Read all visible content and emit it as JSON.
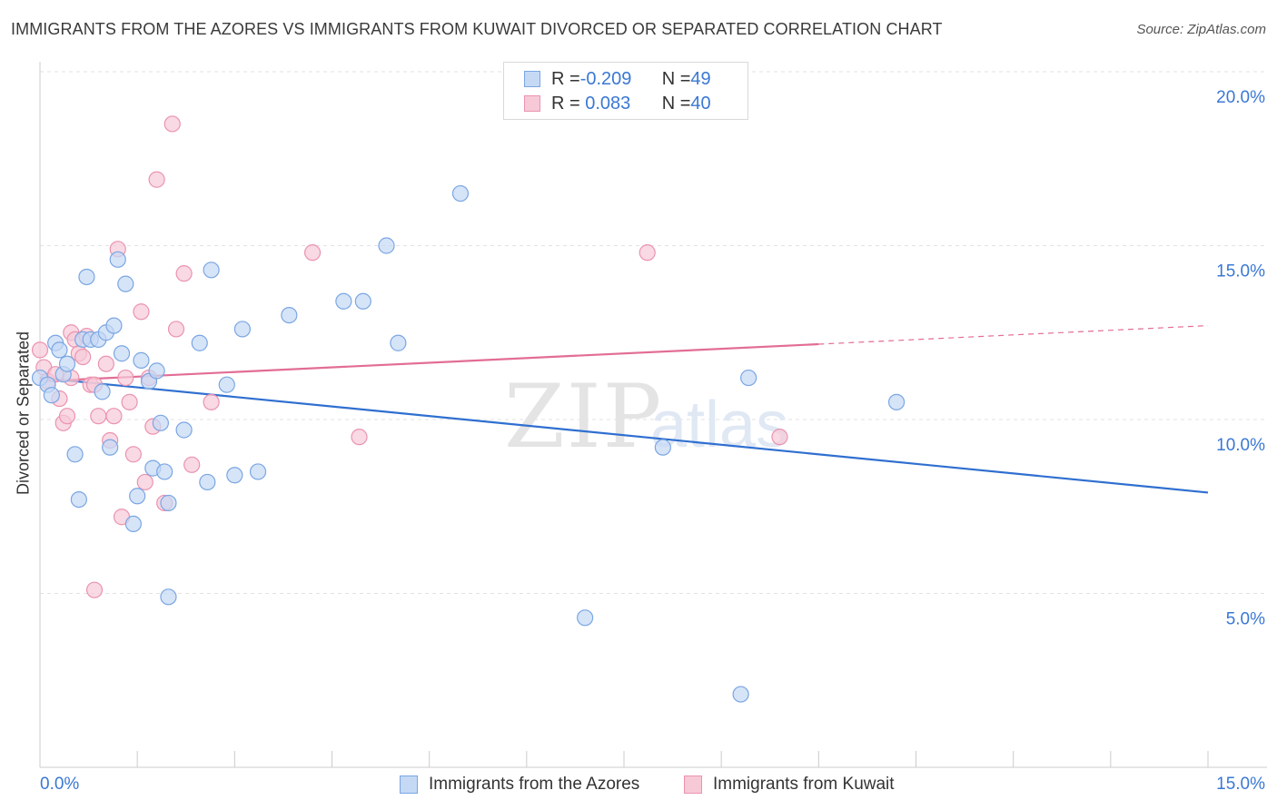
{
  "title": "IMMIGRANTS FROM THE AZORES VS IMMIGRANTS FROM KUWAIT DIVORCED OR SEPARATED CORRELATION CHART",
  "source": "Source: ZipAtlas.com",
  "watermark": {
    "zip": "ZIP",
    "atlas": "atlas"
  },
  "legend": {
    "rows": [
      {
        "r_label": "R = ",
        "r_value": "-0.209",
        "n_label": "N = ",
        "n_value": "49"
      },
      {
        "r_label": "R = ",
        "r_value": " 0.083",
        "n_label": "N = ",
        "n_value": "40"
      }
    ]
  },
  "bottom_legend": {
    "series1": "Immigrants from the Azores",
    "series2": "Immigrants from Kuwait"
  },
  "colors": {
    "azores_fill": "#c5d9f5",
    "azores_stroke": "#7aa6e3",
    "azores_line": "#2f6fd0",
    "kuwait_fill": "#f7c9d7",
    "kuwait_stroke": "#eb93b0",
    "kuwait_line": "#e26d95",
    "axis_text": "#3a78d4"
  },
  "chart_data": {
    "type": "scatter",
    "ylabel": "Divorced or Separated",
    "xlim": [
      0,
      15
    ],
    "ylim": [
      0,
      20
    ],
    "x_tick_labels": [
      "0.0%",
      "15.0%"
    ],
    "y_ticks": [
      5,
      10,
      15,
      20
    ],
    "y_tick_labels": [
      "5.0%",
      "10.0%",
      "15.0%",
      "20.0%"
    ],
    "grid": true,
    "series": [
      {
        "name": "Immigrants from the Azores",
        "points": [
          [
            0.0,
            11.2
          ],
          [
            0.1,
            11.0
          ],
          [
            0.15,
            10.7
          ],
          [
            0.2,
            12.2
          ],
          [
            0.25,
            12.0
          ],
          [
            0.3,
            11.3
          ],
          [
            0.35,
            11.6
          ],
          [
            0.45,
            9.0
          ],
          [
            0.5,
            7.7
          ],
          [
            0.55,
            12.3
          ],
          [
            0.6,
            14.1
          ],
          [
            0.65,
            12.3
          ],
          [
            0.75,
            12.3
          ],
          [
            0.8,
            10.8
          ],
          [
            0.85,
            12.5
          ],
          [
            0.9,
            9.2
          ],
          [
            0.95,
            12.7
          ],
          [
            1.0,
            14.6
          ],
          [
            1.05,
            11.9
          ],
          [
            1.1,
            13.9
          ],
          [
            1.2,
            7.0
          ],
          [
            1.25,
            7.8
          ],
          [
            1.3,
            11.7
          ],
          [
            1.4,
            11.1
          ],
          [
            1.45,
            8.6
          ],
          [
            1.5,
            11.4
          ],
          [
            1.55,
            9.9
          ],
          [
            1.6,
            8.5
          ],
          [
            1.65,
            7.6
          ],
          [
            1.65,
            4.9
          ],
          [
            1.85,
            9.7
          ],
          [
            2.05,
            12.2
          ],
          [
            2.15,
            8.2
          ],
          [
            2.2,
            14.3
          ],
          [
            2.4,
            11.0
          ],
          [
            2.5,
            8.4
          ],
          [
            2.6,
            12.6
          ],
          [
            2.8,
            8.5
          ],
          [
            3.2,
            13.0
          ],
          [
            3.9,
            13.4
          ],
          [
            4.15,
            13.4
          ],
          [
            4.45,
            15.0
          ],
          [
            4.6,
            12.2
          ],
          [
            5.4,
            16.5
          ],
          [
            7.0,
            4.3
          ],
          [
            8.0,
            9.2
          ],
          [
            9.0,
            2.1
          ],
          [
            9.1,
            11.2
          ],
          [
            11.0,
            10.5
          ]
        ],
        "trend": {
          "x": [
            0.0,
            15.0
          ],
          "y": [
            11.2,
            7.9
          ]
        }
      },
      {
        "name": "Immigrants from Kuwait",
        "points": [
          [
            0.0,
            12.0
          ],
          [
            0.05,
            11.5
          ],
          [
            0.1,
            11.1
          ],
          [
            0.2,
            11.3
          ],
          [
            0.25,
            10.6
          ],
          [
            0.3,
            9.9
          ],
          [
            0.35,
            10.1
          ],
          [
            0.4,
            12.5
          ],
          [
            0.45,
            12.3
          ],
          [
            0.5,
            11.9
          ],
          [
            0.55,
            11.8
          ],
          [
            0.6,
            12.4
          ],
          [
            0.65,
            11.0
          ],
          [
            0.7,
            11.0
          ],
          [
            0.75,
            10.1
          ],
          [
            0.85,
            11.6
          ],
          [
            0.9,
            9.4
          ],
          [
            0.95,
            10.1
          ],
          [
            1.0,
            14.9
          ],
          [
            1.05,
            7.2
          ],
          [
            1.1,
            11.2
          ],
          [
            1.15,
            10.5
          ],
          [
            1.2,
            9.0
          ],
          [
            1.3,
            13.1
          ],
          [
            1.35,
            8.2
          ],
          [
            1.4,
            11.2
          ],
          [
            1.45,
            9.8
          ],
          [
            1.5,
            16.9
          ],
          [
            1.6,
            7.6
          ],
          [
            1.7,
            18.5
          ],
          [
            1.75,
            12.6
          ],
          [
            1.85,
            14.2
          ],
          [
            1.95,
            8.7
          ],
          [
            2.2,
            10.5
          ],
          [
            3.5,
            14.8
          ],
          [
            4.1,
            9.5
          ],
          [
            7.8,
            14.8
          ],
          [
            9.5,
            9.5
          ],
          [
            0.7,
            5.1
          ],
          [
            0.4,
            11.2
          ]
        ],
        "trend": {
          "x": [
            0.0,
            15.0
          ],
          "y": [
            11.1,
            12.7
          ],
          "solid_until_x": 10.0
        }
      }
    ]
  }
}
